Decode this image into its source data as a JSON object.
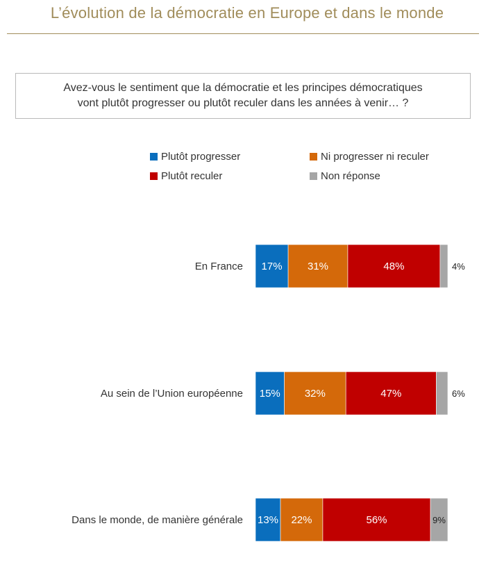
{
  "header": {
    "title": "L’évolution de la démocratie en Europe et dans le monde"
  },
  "question": {
    "line1": "Avez-vous le sentiment que la démocratie et les principes démocratiques",
    "line2": "vont plutôt progresser ou plutôt reculer dans les années à venir… ?"
  },
  "colors": {
    "title": "#a08c5a",
    "progress": "#0a6ebd",
    "neither": "#d4690a",
    "recede": "#c00000",
    "no_answer": "#a6a6a6"
  },
  "legend": [
    {
      "label": "Plutôt progresser",
      "color": "#0a6ebd"
    },
    {
      "label": "Ni progresser ni reculer",
      "color": "#d4690a"
    },
    {
      "label": "Plutôt reculer",
      "color": "#c00000"
    },
    {
      "label": "Non réponse",
      "color": "#a6a6a6"
    }
  ],
  "chart_data": {
    "type": "bar",
    "orientation": "horizontal",
    "stacked": true,
    "categories": [
      "En France",
      "Au sein de l’Union européenne",
      "Dans le monde, de manière générale"
    ],
    "series": [
      {
        "name": "Plutôt progresser",
        "color": "#0a6ebd",
        "values": [
          17,
          15,
          13
        ],
        "labels": [
          "17%",
          "15%",
          "13%"
        ]
      },
      {
        "name": "Ni progresser ni reculer",
        "color": "#d4690a",
        "values": [
          31,
          32,
          22
        ],
        "labels": [
          "31%",
          "32%",
          "22%"
        ]
      },
      {
        "name": "Plutôt reculer",
        "color": "#c00000",
        "values": [
          48,
          47,
          56
        ],
        "labels": [
          "48%",
          "47%",
          "56%"
        ]
      },
      {
        "name": "Non réponse",
        "color": "#a6a6a6",
        "values": [
          4,
          6,
          9
        ],
        "labels": [
          "4%",
          "6%",
          "9%"
        ]
      }
    ],
    "xlim": [
      0,
      100
    ],
    "grid": false,
    "legend_position": "top"
  }
}
